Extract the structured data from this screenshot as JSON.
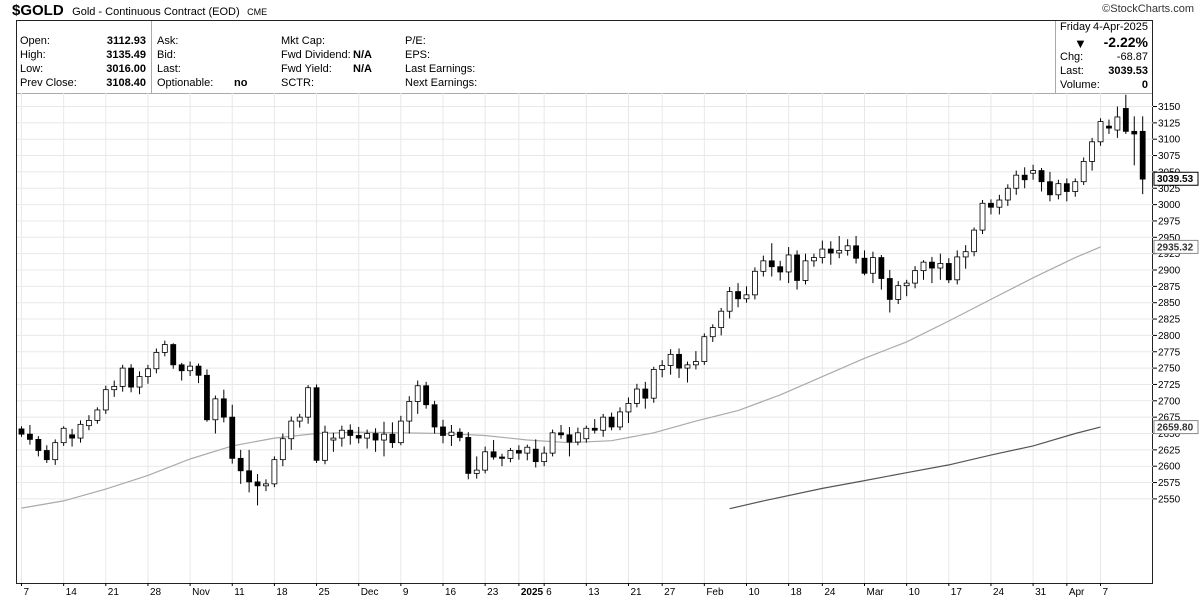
{
  "header": {
    "symbol": "$GOLD",
    "name": "Gold - Continuous Contract (EOD)",
    "exchange": "CME",
    "logo_text": "©StockCharts.com"
  },
  "info": {
    "ohlc": [
      {
        "label": "Open:",
        "value": "3112.93"
      },
      {
        "label": "High:",
        "value": "3135.49"
      },
      {
        "label": "Low:",
        "value": "3016.00"
      },
      {
        "label": "Prev Close:",
        "value": "3108.40"
      }
    ],
    "col2": [
      {
        "label": "Ask:",
        "value": ""
      },
      {
        "label": "Bid:",
        "value": ""
      },
      {
        "label": "Last:",
        "value": ""
      },
      {
        "label": "Optionable:",
        "value": "no"
      }
    ],
    "col3": [
      {
        "label": "Mkt Cap:",
        "value": ""
      },
      {
        "label": "Fwd Dividend:",
        "value": "N/A"
      },
      {
        "label": "Fwd Yield:",
        "value": "N/A"
      },
      {
        "label": "SCTR:",
        "value": ""
      }
    ],
    "col4": [
      {
        "label": "P/E:",
        "value": ""
      },
      {
        "label": "EPS:",
        "value": ""
      },
      {
        "label": "Last Earnings:",
        "value": ""
      },
      {
        "label": "Next Earnings:",
        "value": ""
      }
    ]
  },
  "quote": {
    "day": "Friday",
    "date": "4-Apr-2025",
    "direction_icon": "down-triangle-icon",
    "change_pct": "-2.22%",
    "chg_label": "Chg:",
    "chg_value": "-68.87",
    "last_label": "Last:",
    "last_value": "3039.53",
    "volume_label": "Volume:",
    "volume_value": "0"
  },
  "chart_data": {
    "type": "candlestick",
    "grid": true,
    "price_axis": {
      "side": "right",
      "ylim": [
        2535,
        3165
      ],
      "ticks": [
        2550,
        2575,
        2600,
        2625,
        2650,
        2675,
        2700,
        2725,
        2750,
        2775,
        2800,
        2825,
        2850,
        2875,
        2900,
        2925,
        2950,
        2975,
        3000,
        3025,
        3050,
        3075,
        3100,
        3125,
        3150
      ]
    },
    "x_labels": [
      {
        "i": 0,
        "text": "7"
      },
      {
        "i": 5,
        "text": "14"
      },
      {
        "i": 10,
        "text": "21"
      },
      {
        "i": 15,
        "text": "28"
      },
      {
        "i": 20,
        "text": "Nov"
      },
      {
        "i": 25,
        "text": "11"
      },
      {
        "i": 30,
        "text": "18"
      },
      {
        "i": 35,
        "text": "25"
      },
      {
        "i": 40,
        "text": "Dec"
      },
      {
        "i": 45,
        "text": "9"
      },
      {
        "i": 50,
        "text": "16"
      },
      {
        "i": 55,
        "text": "23"
      },
      {
        "i": 59,
        "text": "2025"
      },
      {
        "i": 62,
        "text": "6"
      },
      {
        "i": 67,
        "text": "13"
      },
      {
        "i": 72,
        "text": "21"
      },
      {
        "i": 76,
        "text": "27"
      },
      {
        "i": 81,
        "text": "Feb"
      },
      {
        "i": 86,
        "text": "10"
      },
      {
        "i": 91,
        "text": "18"
      },
      {
        "i": 95,
        "text": "24"
      },
      {
        "i": 100,
        "text": "Mar"
      },
      {
        "i": 105,
        "text": "10"
      },
      {
        "i": 110,
        "text": "17"
      },
      {
        "i": 115,
        "text": "24"
      },
      {
        "i": 120,
        "text": "31"
      },
      {
        "i": 124,
        "text": "Apr"
      },
      {
        "i": 128,
        "text": "7"
      }
    ],
    "price_boxes": [
      {
        "value": 3039.53,
        "text": "3039.53",
        "style": "dark"
      },
      {
        "value": 2935.32,
        "text": "2935.32",
        "style": "light"
      },
      {
        "value": 2659.8,
        "text": "2659.80",
        "style": "light"
      }
    ],
    "candles": [
      [
        2657,
        2661,
        2645,
        2649
      ],
      [
        2649,
        2663,
        2633,
        2641
      ],
      [
        2641,
        2646,
        2615,
        2624
      ],
      [
        2624,
        2632,
        2605,
        2610
      ],
      [
        2610,
        2641,
        2602,
        2636
      ],
      [
        2636,
        2661,
        2631,
        2658
      ],
      [
        2648,
        2657,
        2630,
        2643
      ],
      [
        2643,
        2670,
        2636,
        2664
      ],
      [
        2662,
        2678,
        2655,
        2670
      ],
      [
        2670,
        2690,
        2665,
        2686
      ],
      [
        2686,
        2723,
        2680,
        2717
      ],
      [
        2717,
        2731,
        2706,
        2722
      ],
      [
        2722,
        2755,
        2714,
        2750
      ],
      [
        2750,
        2756,
        2713,
        2721
      ],
      [
        2721,
        2745,
        2710,
        2737
      ],
      [
        2737,
        2755,
        2726,
        2749
      ],
      [
        2749,
        2780,
        2742,
        2774
      ],
      [
        2774,
        2792,
        2768,
        2786
      ],
      [
        2786,
        2788,
        2749,
        2755
      ],
      [
        2755,
        2758,
        2731,
        2746
      ],
      [
        2746,
        2760,
        2738,
        2753
      ],
      [
        2753,
        2757,
        2727,
        2739
      ],
      [
        2739,
        2748,
        2668,
        2671
      ],
      [
        2671,
        2708,
        2650,
        2703
      ],
      [
        2703,
        2717,
        2667,
        2675
      ],
      [
        2675,
        2694,
        2604,
        2612
      ],
      [
        2612,
        2625,
        2573,
        2593
      ],
      [
        2593,
        2625,
        2560,
        2576
      ],
      [
        2576,
        2588,
        2540,
        2570
      ],
      [
        2570,
        2580,
        2562,
        2573
      ],
      [
        2573,
        2615,
        2568,
        2610
      ],
      [
        2610,
        2650,
        2600,
        2642
      ],
      [
        2642,
        2676,
        2625,
        2669
      ],
      [
        2669,
        2680,
        2659,
        2675
      ],
      [
        2675,
        2724,
        2665,
        2720
      ],
      [
        2720,
        2725,
        2605,
        2609
      ],
      [
        2609,
        2662,
        2603,
        2652
      ],
      [
        2640,
        2651,
        2622,
        2643
      ],
      [
        2643,
        2662,
        2630,
        2655
      ],
      [
        2655,
        2664,
        2633,
        2647
      ],
      [
        2647,
        2660,
        2635,
        2643
      ],
      [
        2643,
        2656,
        2627,
        2650
      ],
      [
        2650,
        2658,
        2622,
        2640
      ],
      [
        2640,
        2668,
        2615,
        2649
      ],
      [
        2649,
        2667,
        2628,
        2636
      ],
      [
        2636,
        2677,
        2632,
        2669
      ],
      [
        2669,
        2707,
        2650,
        2699
      ],
      [
        2699,
        2731,
        2680,
        2723
      ],
      [
        2723,
        2729,
        2688,
        2694
      ],
      [
        2694,
        2700,
        2650,
        2660
      ],
      [
        2660,
        2671,
        2635,
        2647
      ],
      [
        2647,
        2663,
        2631,
        2652
      ],
      [
        2652,
        2658,
        2638,
        2644
      ],
      [
        2644,
        2652,
        2580,
        2589
      ],
      [
        2589,
        2615,
        2581,
        2594
      ],
      [
        2594,
        2630,
        2589,
        2622
      ],
      [
        2622,
        2640,
        2610,
        2614
      ],
      [
        2614,
        2619,
        2600,
        2612
      ],
      [
        2612,
        2628,
        2606,
        2624
      ],
      [
        2624,
        2632,
        2610,
        2620
      ],
      [
        2620,
        2633,
        2609,
        2629
      ],
      [
        2626,
        2641,
        2598,
        2607
      ],
      [
        2607,
        2630,
        2600,
        2620
      ],
      [
        2620,
        2656,
        2615,
        2651
      ],
      [
        2651,
        2663,
        2642,
        2648
      ],
      [
        2648,
        2660,
        2615,
        2637
      ],
      [
        2637,
        2659,
        2632,
        2651
      ],
      [
        2642,
        2662,
        2636,
        2658
      ],
      [
        2658,
        2672,
        2650,
        2655
      ],
      [
        2655,
        2680,
        2645,
        2675
      ],
      [
        2675,
        2682,
        2655,
        2660
      ],
      [
        2660,
        2690,
        2655,
        2683
      ],
      [
        2683,
        2705,
        2666,
        2696
      ],
      [
        2696,
        2726,
        2690,
        2718
      ],
      [
        2718,
        2729,
        2688,
        2704
      ],
      [
        2704,
        2752,
        2697,
        2748
      ],
      [
        2748,
        2762,
        2736,
        2754
      ],
      [
        2754,
        2779,
        2740,
        2771
      ],
      [
        2771,
        2780,
        2735,
        2750
      ],
      [
        2750,
        2760,
        2728,
        2755
      ],
      [
        2755,
        2776,
        2748,
        2760
      ],
      [
        2760,
        2803,
        2755,
        2798
      ],
      [
        2798,
        2817,
        2790,
        2812
      ],
      [
        2812,
        2842,
        2800,
        2837
      ],
      [
        2837,
        2874,
        2826,
        2867
      ],
      [
        2867,
        2880,
        2843,
        2856
      ],
      [
        2856,
        2875,
        2850,
        2862
      ],
      [
        2862,
        2904,
        2855,
        2898
      ],
      [
        2898,
        2922,
        2890,
        2914
      ],
      [
        2914,
        2941,
        2890,
        2905
      ],
      [
        2905,
        2914,
        2884,
        2897
      ],
      [
        2897,
        2935,
        2880,
        2923
      ],
      [
        2923,
        2930,
        2870,
        2884
      ],
      [
        2884,
        2925,
        2878,
        2914
      ],
      [
        2914,
        2925,
        2905,
        2919
      ],
      [
        2919,
        2945,
        2910,
        2932
      ],
      [
        2932,
        2944,
        2908,
        2926
      ],
      [
        2926,
        2952,
        2918,
        2930
      ],
      [
        2930,
        2947,
        2922,
        2937
      ],
      [
        2937,
        2952,
        2910,
        2918
      ],
      [
        2918,
        2930,
        2892,
        2895
      ],
      [
        2895,
        2928,
        2880,
        2919
      ],
      [
        2919,
        2923,
        2870,
        2887
      ],
      [
        2887,
        2900,
        2835,
        2855
      ],
      [
        2855,
        2883,
        2848,
        2876
      ],
      [
        2876,
        2885,
        2860,
        2880
      ],
      [
        2880,
        2906,
        2872,
        2899
      ],
      [
        2899,
        2915,
        2885,
        2912
      ],
      [
        2912,
        2920,
        2880,
        2903
      ],
      [
        2903,
        2925,
        2885,
        2910
      ],
      [
        2910,
        2918,
        2880,
        2885
      ],
      [
        2885,
        2930,
        2878,
        2920
      ],
      [
        2920,
        2938,
        2902,
        2928
      ],
      [
        2928,
        2965,
        2921,
        2961
      ],
      [
        2961,
        3007,
        2955,
        3002
      ],
      [
        3002,
        3008,
        2985,
        2996
      ],
      [
        2996,
        3015,
        2985,
        3007
      ],
      [
        3007,
        3031,
        2998,
        3025
      ],
      [
        3025,
        3052,
        3015,
        3045
      ],
      [
        3045,
        3057,
        3025,
        3038
      ],
      [
        3048,
        3061,
        3038,
        3052
      ],
      [
        3052,
        3056,
        3020,
        3035
      ],
      [
        3035,
        3050,
        3005,
        3015
      ],
      [
        3015,
        3038,
        3008,
        3032
      ],
      [
        3032,
        3040,
        3005,
        3020
      ],
      [
        3020,
        3040,
        3012,
        3035
      ],
      [
        3035,
        3072,
        3030,
        3066
      ],
      [
        3066,
        3102,
        3052,
        3096
      ],
      [
        3096,
        3132,
        3090,
        3127
      ],
      [
        3120,
        3130,
        3108,
        3117
      ],
      [
        3114,
        3150,
        3102,
        3134
      ],
      [
        3147,
        3168,
        3108,
        3112
      ],
      [
        3112,
        3135,
        3060,
        3108
      ],
      [
        3112,
        3135,
        3016,
        3039
      ]
    ],
    "ma_series": [
      {
        "period": "long",
        "color": "#aaaaaa",
        "points": [
          [
            0,
            2536
          ],
          [
            5,
            2547
          ],
          [
            10,
            2565
          ],
          [
            15,
            2586
          ],
          [
            20,
            2611
          ],
          [
            25,
            2631
          ],
          [
            30,
            2643
          ],
          [
            35,
            2650
          ],
          [
            40,
            2652
          ],
          [
            45,
            2651
          ],
          [
            50,
            2650
          ],
          [
            55,
            2647
          ],
          [
            60,
            2640
          ],
          [
            65,
            2636
          ],
          [
            70,
            2639
          ],
          [
            75,
            2651
          ],
          [
            80,
            2669
          ],
          [
            85,
            2685
          ],
          [
            90,
            2709
          ],
          [
            95,
            2737
          ],
          [
            100,
            2765
          ],
          [
            105,
            2790
          ],
          [
            110,
            2822
          ],
          [
            115,
            2855
          ],
          [
            120,
            2888
          ],
          [
            125,
            2919
          ],
          [
            128,
            2935.32
          ]
        ]
      },
      {
        "period": "longer",
        "color": "#555555",
        "points": [
          [
            84,
            2535
          ],
          [
            88,
            2547
          ],
          [
            95,
            2566
          ],
          [
            100,
            2578
          ],
          [
            105,
            2590
          ],
          [
            110,
            2602
          ],
          [
            115,
            2617
          ],
          [
            120,
            2631
          ],
          [
            125,
            2650
          ],
          [
            128,
            2659.8
          ]
        ]
      }
    ]
  }
}
